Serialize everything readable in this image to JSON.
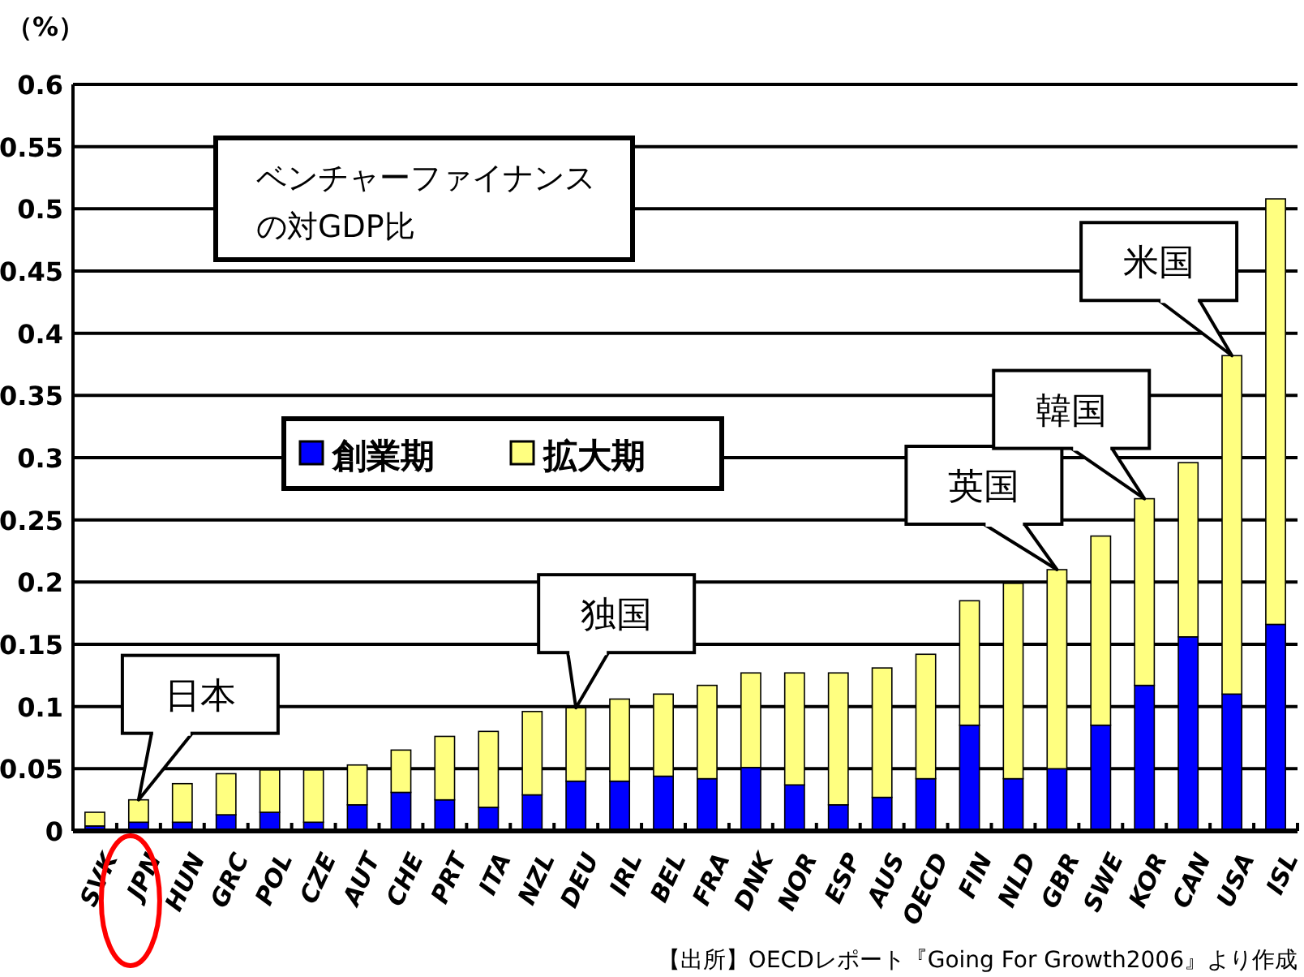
{
  "chart_data": {
    "type": "bar",
    "stacked": true,
    "title": "ベンチャーファイナンスの対GDP比",
    "ylabel": "（%）",
    "categories": [
      "SVK",
      "JPN",
      "HUN",
      "GRC",
      "POL",
      "CZE",
      "AUT",
      "CHE",
      "PRT",
      "ITA",
      "NZL",
      "DEU",
      "IRL",
      "BEL",
      "FRA",
      "DNK",
      "NOR",
      "ESP",
      "AUS",
      "OECD",
      "FIN",
      "NLD",
      "GBR",
      "SWE",
      "KOR",
      "CAN",
      "USA",
      "ISL"
    ],
    "series": [
      {
        "name": "創業期",
        "color": "#0000ff",
        "values": [
          0.004,
          0.007,
          0.007,
          0.013,
          0.015,
          0.007,
          0.021,
          0.031,
          0.025,
          0.019,
          0.029,
          0.04,
          0.04,
          0.044,
          0.042,
          0.051,
          0.037,
          0.021,
          0.027,
          0.042,
          0.085,
          0.042,
          0.05,
          0.085,
          0.117,
          0.156,
          0.11,
          0.166
        ]
      },
      {
        "name": "拡大期",
        "color": "#ffff80",
        "values": [
          0.011,
          0.018,
          0.031,
          0.033,
          0.034,
          0.042,
          0.032,
          0.034,
          0.051,
          0.061,
          0.067,
          0.059,
          0.066,
          0.066,
          0.075,
          0.076,
          0.09,
          0.106,
          0.104,
          0.1,
          0.1,
          0.157,
          0.16,
          0.152,
          0.15,
          0.14,
          0.272,
          0.342
        ]
      }
    ],
    "ylim": [
      0,
      0.6
    ],
    "yticks": [
      0,
      0.05,
      0.1,
      0.15,
      0.2,
      0.25,
      0.3,
      0.35,
      0.4,
      0.45,
      0.5,
      0.55,
      0.6
    ],
    "grid": "y",
    "legend": "center",
    "annotations": [
      {
        "text": "日本",
        "x": "JPN",
        "y": 0.025
      },
      {
        "text": "独国",
        "x": "DEU",
        "y": 0.099
      },
      {
        "text": "英国",
        "x": "GBR",
        "y": 0.21
      },
      {
        "text": "韓国",
        "x": "KOR",
        "y": 0.267
      },
      {
        "text": "米国",
        "x": "USA",
        "y": 0.382
      },
      "【出所】OECDレポート『Going For Growth2006』より作成"
    ]
  }
}
